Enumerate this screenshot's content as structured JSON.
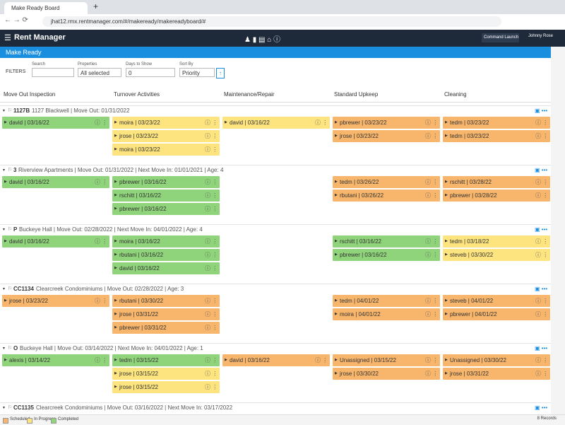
{
  "browser": {
    "tab": "Make Ready Board",
    "url": "jhat12.rmx.rentmanager.com/#/makeready/makereadyboard/#"
  },
  "header": {
    "brand": "Rent Manager",
    "command": "Command Launch",
    "user": "Johnny Rose"
  },
  "page_title": "Make Ready",
  "filters": {
    "label": "FILTERS",
    "search_label": "Search",
    "properties_label": "Properties",
    "properties_value": "All selected",
    "days_label": "Days to Show",
    "days_value": "0",
    "sort_label": "Sort By",
    "sort_value": "Priority"
  },
  "columns": [
    "Move Out Inspection",
    "Turnover Activities",
    "Maintenance/Repair",
    "Standard Upkeep",
    "Cleaning"
  ],
  "units": [
    {
      "code": "1127B",
      "info": "1127 Blackwell | Move Out: 01/31/2022",
      "cards": [
        [
          {
            "text": "david | 03/16/22",
            "color": "#8fd47a"
          }
        ],
        [
          {
            "text": "moira | 03/23/22",
            "color": "#fde47f"
          },
          {
            "text": "jrose | 03/23/22",
            "color": "#fde47f"
          },
          {
            "text": "moira | 03/23/22",
            "color": "#fde47f"
          }
        ],
        [
          {
            "text": "david | 03/16/22",
            "color": "#fde47f"
          }
        ],
        [
          {
            "text": "pbrewer | 03/23/22",
            "color": "#f8b66c"
          },
          {
            "text": "jrose | 03/23/22",
            "color": "#f8b66c"
          }
        ],
        [
          {
            "text": "tedm | 03/23/22",
            "color": "#f8b66c"
          },
          {
            "text": "tedm | 03/23/22",
            "color": "#f8b66c"
          }
        ]
      ]
    },
    {
      "code": "3",
      "info": "Riverview Apartments | Move Out: 01/31/2022 | Next Move In: 01/01/2021 | Age: 4",
      "cards": [
        [
          {
            "text": "david | 03/16/22",
            "color": "#8fd47a"
          }
        ],
        [
          {
            "text": "pbrewer | 03/16/22",
            "color": "#8fd47a"
          },
          {
            "text": "rschitt | 03/16/22",
            "color": "#8fd47a"
          },
          {
            "text": "pbrewer | 03/16/22",
            "color": "#8fd47a"
          }
        ],
        [],
        [
          {
            "text": "tedm | 03/26/22",
            "color": "#f8b66c"
          },
          {
            "text": "rbutani | 03/26/22",
            "color": "#f8b66c"
          }
        ],
        [
          {
            "text": "rschitt | 03/28/22",
            "color": "#f8b66c"
          },
          {
            "text": "pbrewer | 03/28/22",
            "color": "#f8b66c"
          }
        ]
      ]
    },
    {
      "code": "P",
      "info": "Buckeye Hall | Move Out: 02/28/2022 | Next Move In: 04/01/2022 | Age: 4",
      "cards": [
        [
          {
            "text": "david | 03/16/22",
            "color": "#8fd47a"
          }
        ],
        [
          {
            "text": "moira | 03/16/22",
            "color": "#8fd47a"
          },
          {
            "text": "rbutani | 03/16/22",
            "color": "#8fd47a"
          },
          {
            "text": "david | 03/16/22",
            "color": "#8fd47a"
          }
        ],
        [],
        [
          {
            "text": "rschitt | 03/16/22",
            "color": "#8fd47a"
          },
          {
            "text": "pbrewer | 03/16/22",
            "color": "#8fd47a"
          }
        ],
        [
          {
            "text": "tedm | 03/18/22",
            "color": "#fde47f"
          },
          {
            "text": "steveb | 03/30/22",
            "color": "#fde47f"
          }
        ]
      ]
    },
    {
      "code": "CC1134",
      "info": "Clearcreek Condominiums | Move Out: 02/28/2022 | Age: 3",
      "cards": [
        [
          {
            "text": "jrose | 03/23/22",
            "color": "#f8b66c"
          }
        ],
        [
          {
            "text": "rbutani | 03/30/22",
            "color": "#f8b66c"
          },
          {
            "text": "jrose | 03/31/22",
            "color": "#f8b66c"
          },
          {
            "text": "pbrewer | 03/31/22",
            "color": "#f8b66c"
          }
        ],
        [],
        [
          {
            "text": "tedm | 04/01/22",
            "color": "#f8b66c"
          },
          {
            "text": "moira | 04/01/22",
            "color": "#f8b66c"
          }
        ],
        [
          {
            "text": "steveb | 04/01/22",
            "color": "#f8b66c"
          },
          {
            "text": "pbrewer | 04/01/22",
            "color": "#f8b66c"
          }
        ]
      ]
    },
    {
      "code": "O",
      "info": "Buckeye Hall | Move Out: 03/14/2022 | Next Move In: 04/01/2022 | Age: 1",
      "cards": [
        [
          {
            "text": "alexis | 03/14/22",
            "color": "#8fd47a"
          }
        ],
        [
          {
            "text": "tedm | 03/15/22",
            "color": "#8fd47a"
          },
          {
            "text": "jrose | 03/15/22",
            "color": "#fde47f"
          },
          {
            "text": "jrose | 03/15/22",
            "color": "#fde47f"
          }
        ],
        [
          {
            "text": "david | 03/16/22",
            "color": "#f8b66c"
          }
        ],
        [
          {
            "text": "Unassigned | 03/15/22",
            "color": "#f8b66c"
          },
          {
            "text": "jrose | 03/30/22",
            "color": "#f8b66c"
          }
        ],
        [
          {
            "text": "Unassigned | 03/30/22",
            "color": "#f8b66c"
          },
          {
            "text": "jrose | 03/31/22",
            "color": "#f8b66c"
          }
        ]
      ]
    },
    {
      "code": "CC1135",
      "info": "Clearcreek Condominiums | Move Out: 03/16/2022 | Next Move In: 03/17/2022",
      "cards": [
        [],
        [],
        [],
        [],
        []
      ]
    }
  ],
  "legend": [
    {
      "label": "Scheduled",
      "color": "#f8b66c"
    },
    {
      "label": "In Progress",
      "color": "#fde47f"
    },
    {
      "label": "Completed",
      "color": "#8fd47a"
    }
  ],
  "records": "8 Records"
}
